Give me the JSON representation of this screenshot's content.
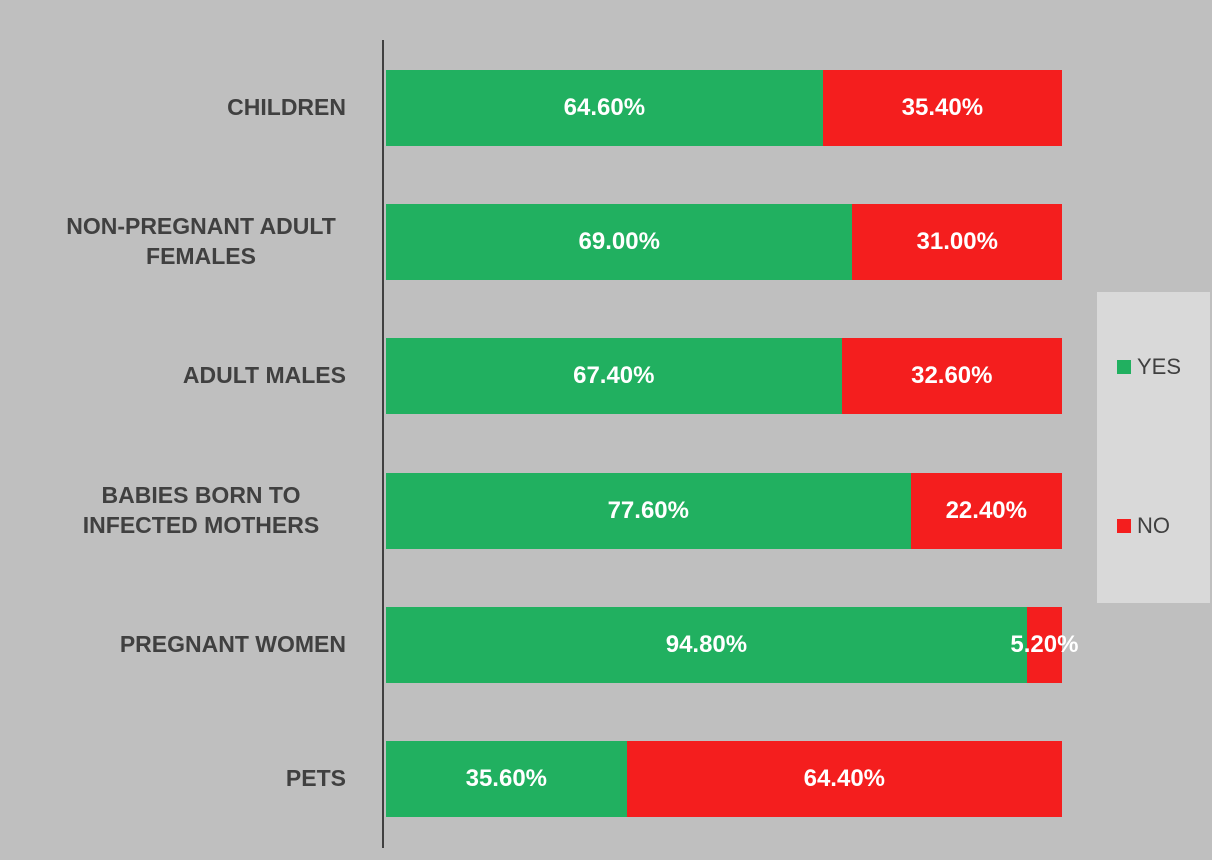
{
  "chart_data": {
    "type": "stacked_bar_horizontal",
    "categories": [
      "CHILDREN",
      "NON-PREGNANT ADULT FEMALES",
      "ADULT MALES",
      "BABIES BORN TO INFECTED MOTHERS",
      "PREGNANT WOMEN",
      "PETS"
    ],
    "series": [
      {
        "name": "YES",
        "color": "#21b060",
        "values": [
          64.6,
          69.0,
          67.4,
          77.6,
          94.8,
          35.6
        ],
        "value_labels": [
          "64.60%",
          "69.00%",
          "67.40%",
          "77.60%",
          "94.80%",
          "35.60%"
        ]
      },
      {
        "name": "NO",
        "color": "#f41e1e",
        "values": [
          35.4,
          31.0,
          32.6,
          22.4,
          5.2,
          64.4
        ],
        "value_labels": [
          "35.40%",
          "31.00%",
          "32.60%",
          "22.40%",
          "5.20%",
          "64.40%"
        ]
      }
    ],
    "xlim": [
      0,
      100
    ],
    "legend": "right"
  }
}
